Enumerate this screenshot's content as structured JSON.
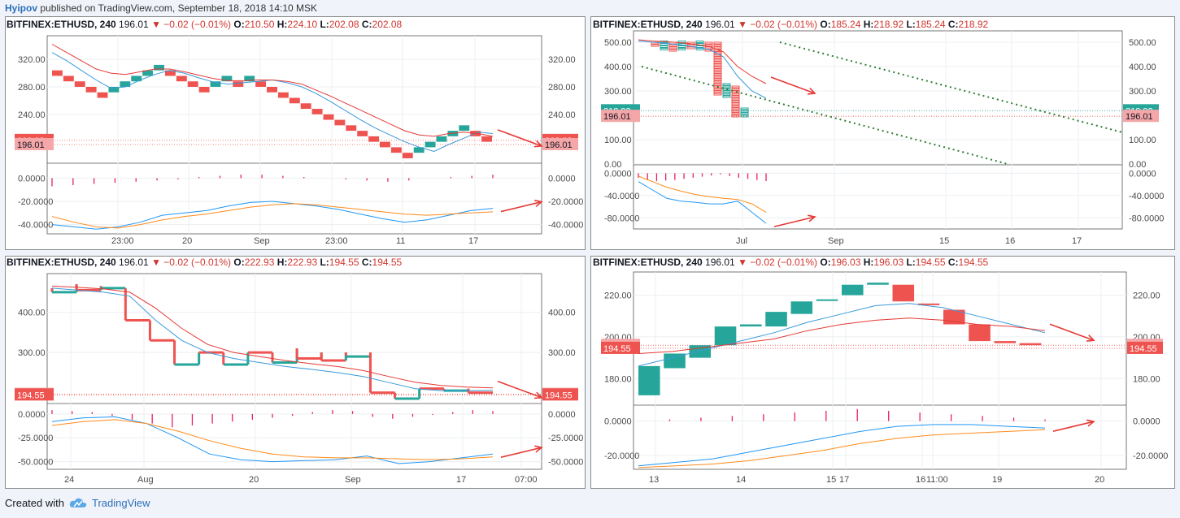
{
  "header": {
    "user": "Hyipov",
    "text": "published on TradingView.com, September 18, 2018 14:10 MSK"
  },
  "footer": {
    "created": "Created with",
    "brand": "TradingView",
    "logo_icon": "tradingview-cloud-icon"
  },
  "colors": {
    "up": "#26a69a",
    "down": "#ef5350",
    "ma_fast": "#3a9ad9",
    "ma_slow": "#e53935",
    "macd": "#2196f3",
    "signal": "#ff8a1a",
    "hist": "#e91e63",
    "arrow": "#e53935",
    "trend": "#2e7d32"
  },
  "panels": [
    {
      "symbol": "BITFINEX:ETHUSD, 240",
      "price": "196.01",
      "change": "−0.02 (−0.01%)",
      "o": "210.50",
      "h": "224.10",
      "l": "202.08",
      "c": "202.08",
      "price_badges": [
        {
          "text": "202.08",
          "kind": "down"
        },
        {
          "text": "196.01",
          "kind": "light"
        }
      ],
      "x_labels": [
        "23:00",
        "20",
        "Sep",
        "23:00",
        "11",
        "17"
      ]
    },
    {
      "symbol": "BITFINEX:ETHUSD, 240",
      "price": "196.01",
      "change": "−0.02 (−0.01%)",
      "o": "185.24",
      "h": "218.92",
      "l": "185.24",
      "c": "218.92",
      "price_badges": [
        {
          "text": "218.92",
          "kind": "up"
        },
        {
          "text": "196.01",
          "kind": "light"
        }
      ],
      "x_labels": [
        "Jul",
        "Sep",
        "15",
        "16",
        "17"
      ]
    },
    {
      "symbol": "BITFINEX:ETHUSD, 240",
      "price": "196.01",
      "change": "−0.02 (−0.01%)",
      "o": "222.93",
      "h": "222.93",
      "l": "194.55",
      "c": "194.55",
      "price_badges": [
        {
          "text": "196.01",
          "kind": "light"
        },
        {
          "text": "194.55",
          "kind": "down"
        }
      ],
      "x_labels": [
        "24",
        "Aug",
        "20",
        "Sep",
        "17",
        "07:00"
      ]
    },
    {
      "symbol": "BITFINEX:ETHUSD, 240",
      "price": "196.01",
      "change": "−0.02 (−0.01%)",
      "o": "196.03",
      "h": "196.03",
      "l": "194.55",
      "c": "194.55",
      "price_badges": [
        {
          "text": "196.01",
          "kind": "light"
        },
        {
          "text": "194.55",
          "kind": "down"
        }
      ],
      "x_labels": [
        "13",
        "14",
        "15",
        "16",
        "17",
        "11:00",
        "19",
        "20"
      ]
    }
  ],
  "chart_data": [
    {
      "type": "line",
      "style": "renko",
      "price_axis": {
        "ticks": [
          "320.00",
          "280.00",
          "240.00",
          "202.08",
          "196.01"
        ],
        "ylim": [
          170,
          345
        ]
      },
      "bricks": [
        {
          "y": 300,
          "d": "down"
        },
        {
          "y": 292,
          "d": "down"
        },
        {
          "y": 284,
          "d": "down"
        },
        {
          "y": 276,
          "d": "down"
        },
        {
          "y": 268,
          "d": "down"
        },
        {
          "y": 276,
          "d": "up"
        },
        {
          "y": 284,
          "d": "up"
        },
        {
          "y": 292,
          "d": "up"
        },
        {
          "y": 300,
          "d": "up"
        },
        {
          "y": 308,
          "d": "up"
        },
        {
          "y": 300,
          "d": "down"
        },
        {
          "y": 292,
          "d": "down"
        },
        {
          "y": 284,
          "d": "down"
        },
        {
          "y": 276,
          "d": "down"
        },
        {
          "y": 284,
          "d": "up"
        },
        {
          "y": 292,
          "d": "up"
        },
        {
          "y": 284,
          "d": "down"
        },
        {
          "y": 292,
          "d": "up"
        },
        {
          "y": 284,
          "d": "down"
        },
        {
          "y": 276,
          "d": "down"
        },
        {
          "y": 268,
          "d": "down"
        },
        {
          "y": 260,
          "d": "down"
        },
        {
          "y": 252,
          "d": "down"
        },
        {
          "y": 244,
          "d": "down"
        },
        {
          "y": 236,
          "d": "down"
        },
        {
          "y": 228,
          "d": "down"
        },
        {
          "y": 220,
          "d": "down"
        },
        {
          "y": 212,
          "d": "down"
        },
        {
          "y": 204,
          "d": "down"
        },
        {
          "y": 196,
          "d": "down"
        },
        {
          "y": 188,
          "d": "down"
        },
        {
          "y": 180,
          "d": "down"
        },
        {
          "y": 188,
          "d": "up"
        },
        {
          "y": 196,
          "d": "up"
        },
        {
          "y": 204,
          "d": "up"
        },
        {
          "y": 212,
          "d": "up"
        },
        {
          "y": 220,
          "d": "up"
        },
        {
          "y": 212,
          "d": "down"
        },
        {
          "y": 204,
          "d": "down"
        }
      ],
      "ma_fast": [
        330,
        318,
        304,
        290,
        278,
        280,
        290,
        298,
        304,
        300,
        293,
        287,
        284,
        286,
        288,
        290,
        286,
        280,
        270,
        258,
        245,
        232,
        220,
        210,
        200,
        192,
        186,
        196,
        205,
        214,
        212
      ],
      "ma_slow": [
        342,
        330,
        318,
        306,
        300,
        298,
        302,
        306,
        306,
        302,
        297,
        292,
        289,
        289,
        290,
        290,
        288,
        284,
        275,
        266,
        256,
        246,
        236,
        226,
        216,
        210,
        208,
        212,
        214,
        212,
        208
      ],
      "macd_axis": {
        "ticks": [
          "0.0000",
          "-20.0000",
          "-40.0000"
        ],
        "ylim": [
          -48,
          8
        ]
      },
      "macd": [
        -40,
        -42,
        -44,
        -42,
        -38,
        -32,
        -30,
        -28,
        -24,
        -21,
        -20,
        -22,
        -24,
        -27,
        -31,
        -35,
        -38,
        -36,
        -32,
        -28,
        -26
      ],
      "signal": [
        -33,
        -38,
        -42,
        -43,
        -40,
        -36,
        -33,
        -31,
        -28,
        -25,
        -23,
        -22,
        -23,
        -25,
        -27,
        -29,
        -31,
        -32,
        -31,
        -30,
        -29
      ],
      "hist": [
        -7,
        -6,
        -5,
        -4,
        -3,
        -2,
        -1,
        1,
        2,
        3,
        3,
        2,
        1,
        0,
        -1,
        -2,
        -3,
        -2,
        0,
        1,
        2,
        3
      ]
    },
    {
      "type": "line",
      "style": "point-and-figure",
      "price_axis": {
        "ticks": [
          "500.00",
          "400.00",
          "300.00",
          "218.92",
          "196.01",
          "100.00",
          "0.00"
        ],
        "ylim": [
          0,
          520
        ]
      },
      "ma_fast": [
        505,
        500,
        495,
        490,
        480,
        470,
        440,
        360,
        300,
        270
      ],
      "ma_slow": [
        510,
        505,
        502,
        498,
        492,
        482,
        460,
        400,
        360,
        330
      ],
      "macd_axis": {
        "ticks": [
          "0.0000",
          "-40.0000",
          "-80.0000"
        ],
        "ylim": [
          -100,
          5
        ]
      },
      "macd": [
        -15,
        -30,
        -45,
        -50,
        -52,
        -55,
        -55,
        -50,
        -70,
        -90
      ],
      "signal": [
        -5,
        -15,
        -25,
        -32,
        -38,
        -42,
        -45,
        -47,
        -55,
        -70
      ],
      "hist": [
        -8,
        -12,
        -14,
        -13,
        -12,
        -10,
        -8,
        -6,
        -4,
        -2,
        -5,
        -8,
        -10,
        -12,
        -14
      ]
    },
    {
      "type": "line",
      "style": "kagi",
      "price_axis": {
        "ticks": [
          "400.00",
          "300.00",
          "196.01",
          "194.55"
        ],
        "ylim": [
          175,
          480
        ]
      },
      "ma_fast": [
        460,
        455,
        450,
        440,
        380,
        330,
        300,
        285,
        275,
        265,
        258,
        250,
        240,
        225,
        210,
        205,
        205,
        206
      ],
      "ma_slow": [
        465,
        462,
        458,
        450,
        410,
        360,
        320,
        300,
        290,
        280,
        272,
        265,
        255,
        240,
        226,
        218,
        214,
        212
      ],
      "macd_axis": {
        "ticks": [
          "0.0000",
          "-25.0000",
          "-50.0000"
        ],
        "ylim": [
          -58,
          5
        ]
      },
      "macd": [
        -8,
        -4,
        -3,
        -10,
        -25,
        -42,
        -48,
        -50,
        -49,
        -48,
        -44,
        -52,
        -50,
        -46,
        -42
      ],
      "signal": [
        -12,
        -8,
        -6,
        -10,
        -18,
        -28,
        -36,
        -42,
        -45,
        -46,
        -46,
        -47,
        -48,
        -47,
        -45
      ],
      "hist": [
        4,
        3,
        2,
        -2,
        -6,
        -10,
        -14,
        -12,
        -10,
        -8,
        -6,
        -4,
        -2,
        2,
        4,
        3,
        -3,
        -5,
        -3,
        -1,
        2,
        4,
        3
      ]
    },
    {
      "type": "line",
      "style": "heikin-ashi",
      "price_axis": {
        "ticks": [
          "220.00",
          "200.00",
          "196.01",
          "194.55",
          "180.00"
        ],
        "ylim": [
          170,
          228
        ]
      },
      "candles": [
        {
          "o": 172,
          "c": 186,
          "d": "up"
        },
        {
          "o": 185,
          "c": 192,
          "d": "up"
        },
        {
          "o": 190,
          "c": 196,
          "d": "up"
        },
        {
          "o": 196,
          "c": 205,
          "d": "up"
        },
        {
          "o": 205,
          "c": 206,
          "d": "up"
        },
        {
          "o": 205,
          "c": 212,
          "d": "up"
        },
        {
          "o": 211,
          "c": 217,
          "d": "up"
        },
        {
          "o": 218,
          "c": 218,
          "d": "up"
        },
        {
          "o": 220,
          "c": 225,
          "d": "up"
        },
        {
          "o": 225,
          "c": 226,
          "d": "up"
        },
        {
          "o": 225,
          "c": 217,
          "d": "down"
        },
        {
          "o": 216,
          "c": 216,
          "d": "down"
        },
        {
          "o": 213,
          "c": 206,
          "d": "down"
        },
        {
          "o": 206,
          "c": 198,
          "d": "down"
        },
        {
          "o": 198,
          "c": 197,
          "d": "down"
        },
        {
          "o": 197,
          "c": 196,
          "d": "down"
        }
      ],
      "ma_fast": [
        186,
        190,
        194,
        198,
        202,
        207,
        211,
        215,
        216,
        214,
        210,
        206,
        202
      ],
      "ma_slow": [
        192,
        193,
        195,
        197,
        199,
        203,
        206,
        208,
        209,
        208,
        206,
        205,
        203
      ],
      "macd_axis": {
        "ticks": [
          "0.0000",
          "-20.0000"
        ],
        "ylim": [
          -28,
          6
        ]
      },
      "macd": [
        -26,
        -24,
        -22,
        -18,
        -14,
        -10,
        -6,
        -3,
        -2,
        -2,
        -3,
        -4
      ],
      "signal": [
        -27,
        -26,
        -25,
        -23,
        -20,
        -17,
        -13,
        -10,
        -8,
        -7,
        -6,
        -5
      ],
      "hist": [
        0,
        1,
        2,
        3,
        4,
        5,
        6,
        7,
        6,
        5,
        4,
        3,
        2,
        1
      ]
    }
  ]
}
